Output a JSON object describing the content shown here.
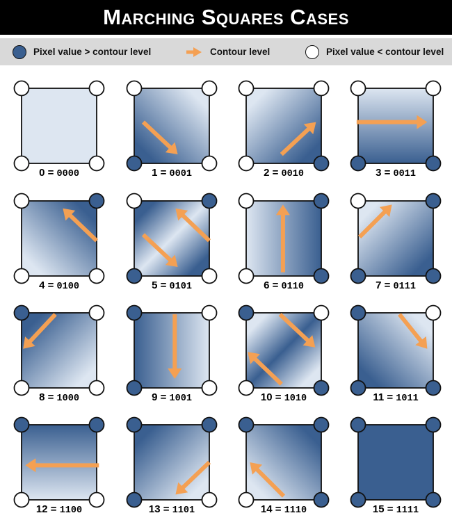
{
  "title": "Marching Squares Cases",
  "legend": {
    "above": "Pixel value > contour level",
    "arrow": "Contour level",
    "below": "Pixel value < contour level"
  },
  "colors": {
    "dark": "#3a5f90",
    "light": "#dde6f1",
    "arrow": "#f4a053",
    "stroke": "#111111"
  },
  "cases": [
    {
      "n": "0",
      "bits": "0000"
    },
    {
      "n": "1",
      "bits": "0001"
    },
    {
      "n": "2",
      "bits": "0010"
    },
    {
      "n": "3",
      "bits": "0011"
    },
    {
      "n": "4",
      "bits": "0100"
    },
    {
      "n": "5",
      "bits": "0101"
    },
    {
      "n": "6",
      "bits": "0110"
    },
    {
      "n": "7",
      "bits": "0111"
    },
    {
      "n": "8",
      "bits": "1000"
    },
    {
      "n": "9",
      "bits": "1001"
    },
    {
      "n": "10",
      "bits": "1010"
    },
    {
      "n": "11",
      "bits": "1011"
    },
    {
      "n": "12",
      "bits": "1100"
    },
    {
      "n": "13",
      "bits": "1101"
    },
    {
      "n": "14",
      "bits": "1110"
    },
    {
      "n": "15",
      "bits": "1111"
    }
  ]
}
